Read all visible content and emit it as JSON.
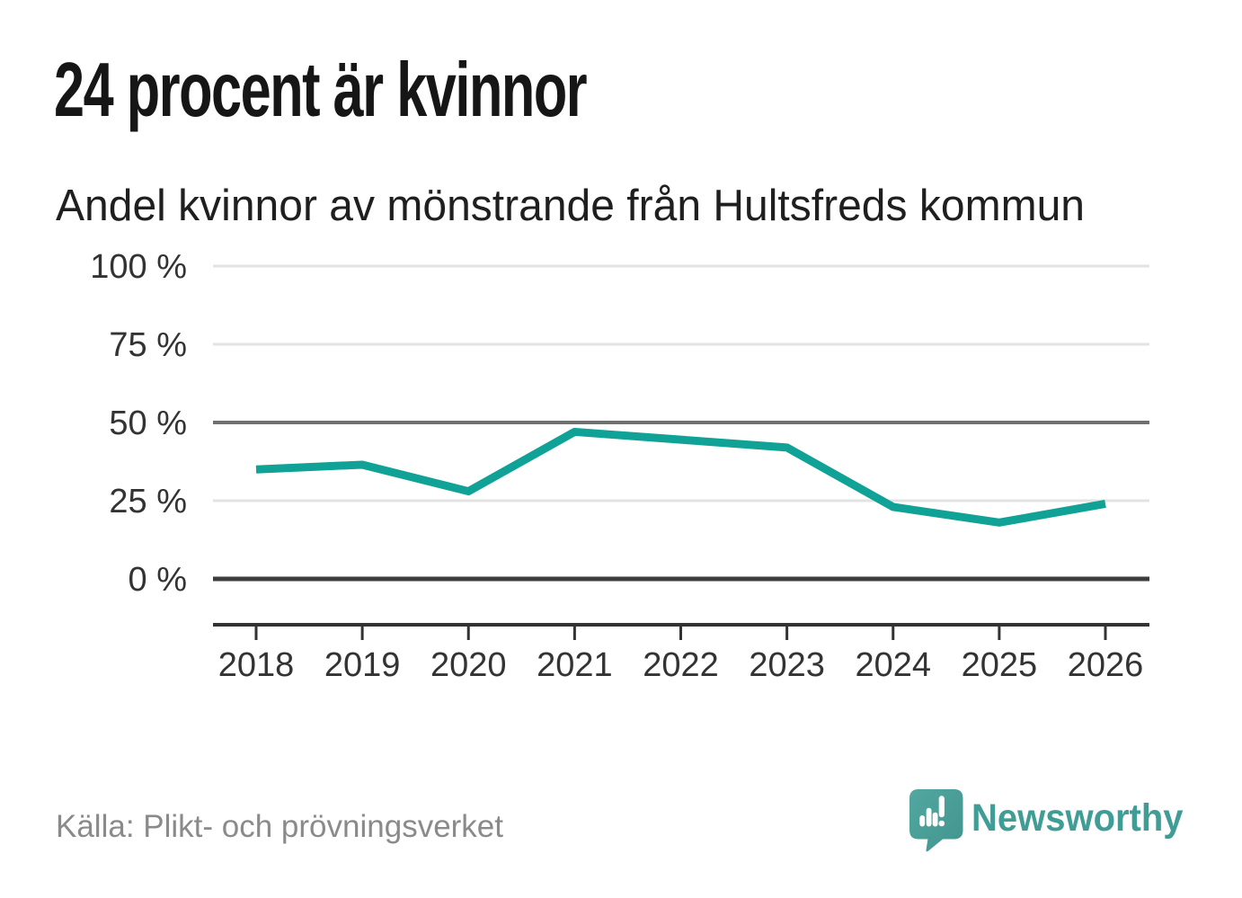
{
  "header": {
    "headline": "24 procent är kvinnor"
  },
  "footer": {
    "source": "Källa: Plikt- och prövningsverket",
    "brand": "Newsworthy"
  },
  "colors": {
    "line": "#10a296",
    "grid_light": "#e3e3e3",
    "grid_mid": "#707070",
    "grid_dark": "#3d3d3d",
    "axis": "#333333",
    "text_tick": "#333333",
    "text_headline": "#161616",
    "text_source": "#8a8a8a",
    "brand_teal": "#3f9d95",
    "logo_bubble": "#4a9e98"
  },
  "chart_data": {
    "type": "line",
    "title": "Andel kvinnor av mönstrande från Hultsfreds kommun",
    "x": [
      "2018",
      "2019",
      "2020",
      "2021",
      "2022",
      "2023",
      "2024",
      "2025",
      "2026"
    ],
    "series": [
      {
        "name": "Andel kvinnor",
        "values": [
          35,
          36.5,
          28,
          47,
          44.5,
          42,
          23,
          18,
          24
        ]
      }
    ],
    "unit": "%",
    "xlabel": "",
    "ylabel": "",
    "ylim": [
      0,
      100
    ],
    "yticks": [
      {
        "value": 100,
        "label": "100 %"
      },
      {
        "value": 75,
        "label": "75 %"
      },
      {
        "value": 50,
        "label": "50 %"
      },
      {
        "value": 25,
        "label": "25 %"
      },
      {
        "value": 0,
        "label": "0 %"
      }
    ],
    "grid": "horizontal",
    "legend": "none"
  }
}
